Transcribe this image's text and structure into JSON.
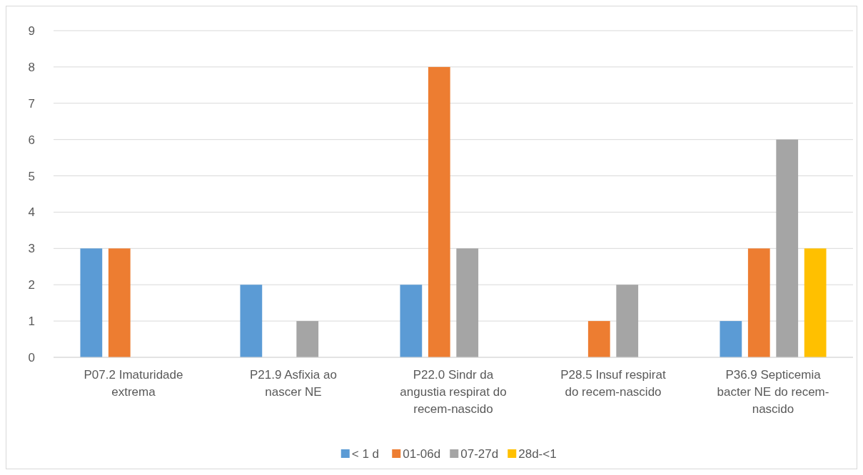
{
  "chart_data": {
    "type": "bar",
    "categories": [
      "P07.2 Imaturidade extrema",
      "P21.9 Asfixia ao nascer NE",
      "P22.0 Sindr da angustia respirat do recem-nascido",
      "P28.5 Insuf respirat do recem-nascido",
      "P36.9 Septicemia bacter NE do recem-nascido"
    ],
    "series": [
      {
        "name": "< 1 d",
        "color": "#5b9bd5",
        "values": [
          3,
          2,
          2,
          null,
          1
        ]
      },
      {
        "name": "01-06d",
        "color": "#ed7d31",
        "values": [
          3,
          null,
          8,
          1,
          3
        ]
      },
      {
        "name": "07-27d",
        "color": "#a5a5a5",
        "values": [
          null,
          1,
          3,
          2,
          6
        ]
      },
      {
        "name": "28d-<1",
        "color": "#ffc000",
        "values": [
          null,
          null,
          null,
          null,
          3
        ]
      }
    ],
    "ylim": [
      0,
      9
    ],
    "yticks": [
      0,
      1,
      2,
      3,
      4,
      5,
      6,
      7,
      8,
      9
    ],
    "grid": "y",
    "legend": "bottom"
  }
}
